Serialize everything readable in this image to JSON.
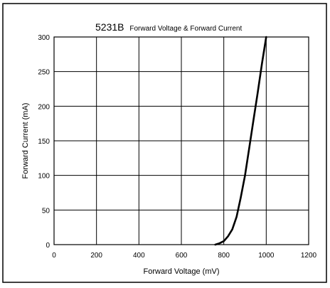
{
  "chart_data": {
    "type": "line",
    "title_main": "5231B",
    "title_sub": "Forward Voltage & Forward Current",
    "xlabel": "Forward Voltage (mV)",
    "ylabel": "Forward Current (mA)",
    "xlim": [
      0,
      1200
    ],
    "ylim": [
      0,
      300
    ],
    "xticks": [
      0,
      200,
      400,
      600,
      800,
      1000,
      1200
    ],
    "yticks": [
      0,
      50,
      100,
      150,
      200,
      250,
      300
    ],
    "grid": true,
    "legend": "none",
    "series": [
      {
        "color": "#000000",
        "x": [
          760,
          780,
          800,
          820,
          840,
          860,
          880,
          900,
          920,
          940,
          960,
          980,
          1000
        ],
        "y": [
          0,
          2,
          5,
          12,
          22,
          40,
          68,
          100,
          140,
          180,
          220,
          262,
          300
        ]
      }
    ]
  }
}
